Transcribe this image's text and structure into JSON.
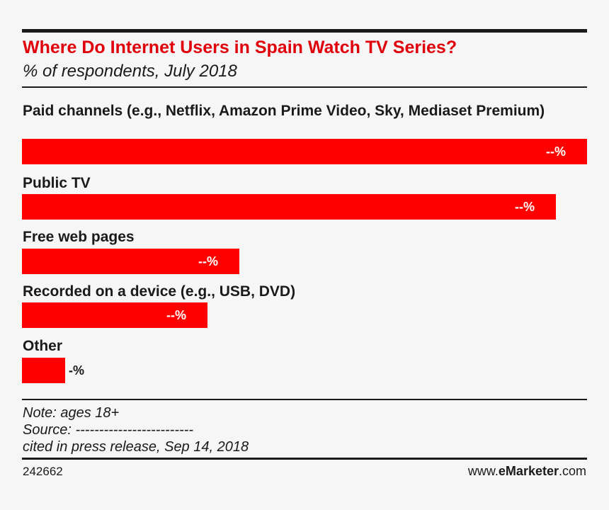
{
  "chart_data": {
    "type": "bar",
    "orientation": "horizontal",
    "title": "Where Do Internet Users in Spain Watch TV Series?",
    "subtitle": "% of respondents, July 2018",
    "categories": [
      "Paid channels (e.g., Netflix, Amazon Prime Video, Sky, Mediaset Premium)",
      "Public TV",
      "Free web pages",
      "Recorded on a device (e.g., USB, DVD)",
      "Other"
    ],
    "value_labels": [
      "--%",
      "--%",
      "--%",
      "--%",
      "-%"
    ],
    "values": [
      100,
      94.5,
      38.5,
      32.8,
      7.7
    ],
    "value_scale": "percent of longest bar (labels not disclosed)",
    "bar_color": "#ff0000",
    "title_color": "#e0000b",
    "grid": false,
    "legend": "none"
  },
  "footer": {
    "note": "Note: ages 18+",
    "source": "Source: -------------------------",
    "cited": "cited in press release, Sep 14, 2018",
    "chart_id": "242662",
    "brand_prefix": "www.",
    "brand_bold": "eMarketer",
    "brand_suffix": ".com"
  }
}
